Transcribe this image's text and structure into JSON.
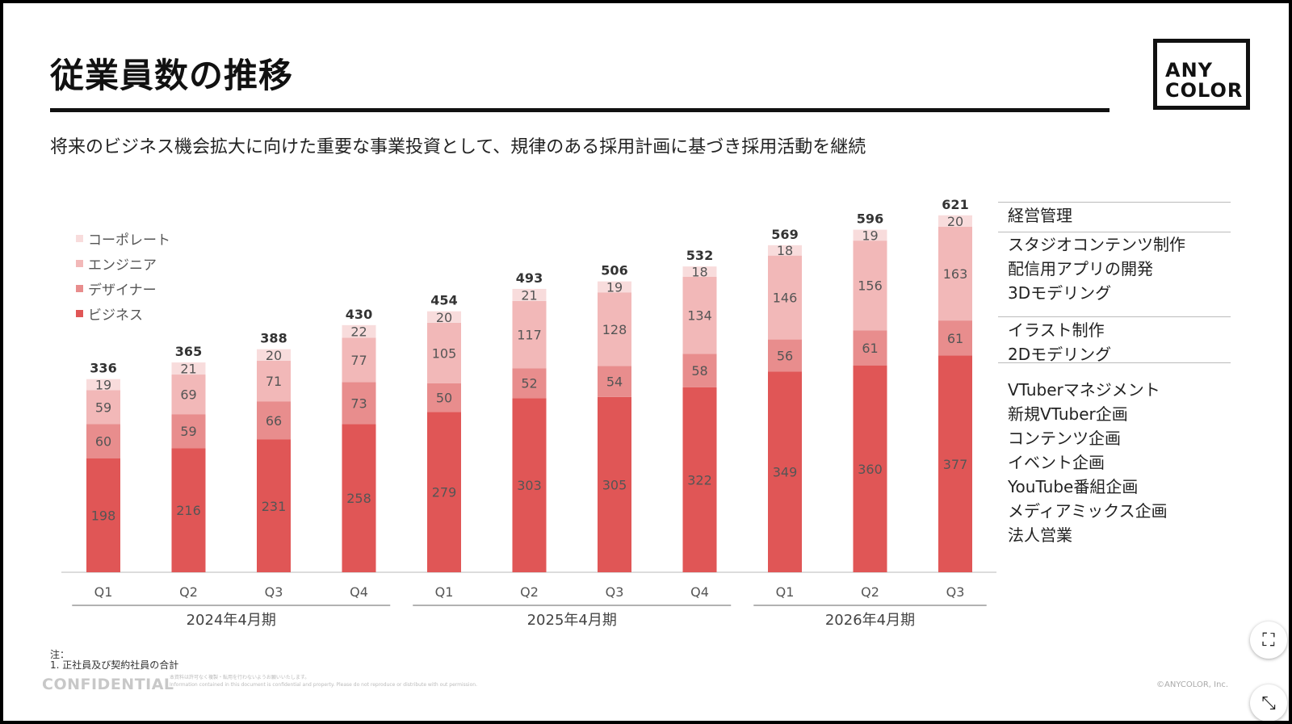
{
  "title": "従業員数の推移",
  "subtitle": "将来のビジネス機会拡大に向けた重要な事業投資として、規律のある採用計画に基づき採用活動を継続",
  "logo": {
    "line1": "ANY",
    "line2": "COLOR"
  },
  "legend": [
    {
      "label": "コーポレート",
      "color": "#f8dcdc"
    },
    {
      "label": "エンジニア",
      "color": "#f2b8b8"
    },
    {
      "label": "デザイナー",
      "color": "#e88d8d"
    },
    {
      "label": "ビジネス",
      "color": "#e05656"
    }
  ],
  "chart_data": {
    "type": "bar",
    "stacked": true,
    "categories": [
      "Q1",
      "Q2",
      "Q3",
      "Q4",
      "Q1",
      "Q2",
      "Q3",
      "Q4",
      "Q1",
      "Q2",
      "Q3"
    ],
    "groups": [
      {
        "label": "2024年4月期",
        "count": 4
      },
      {
        "label": "2025年4月期",
        "count": 4
      },
      {
        "label": "2026年4月期",
        "count": 3
      }
    ],
    "series": [
      {
        "name": "ビジネス",
        "color": "#e05656",
        "values": [
          198,
          216,
          231,
          258,
          279,
          303,
          305,
          322,
          349,
          360,
          377
        ]
      },
      {
        "name": "デザイナー",
        "color": "#e88d8d",
        "values": [
          60,
          59,
          66,
          73,
          50,
          52,
          54,
          58,
          56,
          61,
          61
        ]
      },
      {
        "name": "エンジニア",
        "color": "#f2b8b8",
        "values": [
          59,
          69,
          71,
          77,
          105,
          117,
          128,
          134,
          146,
          156,
          163
        ]
      },
      {
        "name": "コーポレート",
        "color": "#f8dcdc",
        "values": [
          19,
          21,
          20,
          22,
          20,
          21,
          19,
          18,
          18,
          19,
          20
        ]
      }
    ],
    "totals": [
      336,
      365,
      388,
      430,
      454,
      493,
      506,
      532,
      569,
      596,
      621
    ],
    "ylim": [
      0,
      660
    ]
  },
  "side_groups": [
    [
      "経営管理"
    ],
    [
      "スタジオコンテンツ制作",
      "配信用アプリの開発",
      "3Dモデリング"
    ],
    [
      "イラスト制作",
      "2Dモデリング"
    ],
    [
      "VTuberマネジメント",
      "新規VTuber企画",
      "コンテンツ企画",
      "イベント企画",
      "YouTube番組企画",
      "メディアミックス企画",
      "法人営業"
    ]
  ],
  "notes": {
    "header": "注：",
    "line1": "1. 正社員及び契約社員の合計"
  },
  "confidential": "CONFIDENTIAL",
  "fine_print": {
    "line1": "本資料は許可なく複製・転用を行わないようお願いいたします。",
    "line2": "Information contained in this document is confidential and property. Please do not reproduce or distribute with out permission."
  },
  "copyright": "©ANYCOLOR, Inc.",
  "controls": {
    "expand_glyph": "⛶",
    "collapse_glyph": "⤡"
  }
}
